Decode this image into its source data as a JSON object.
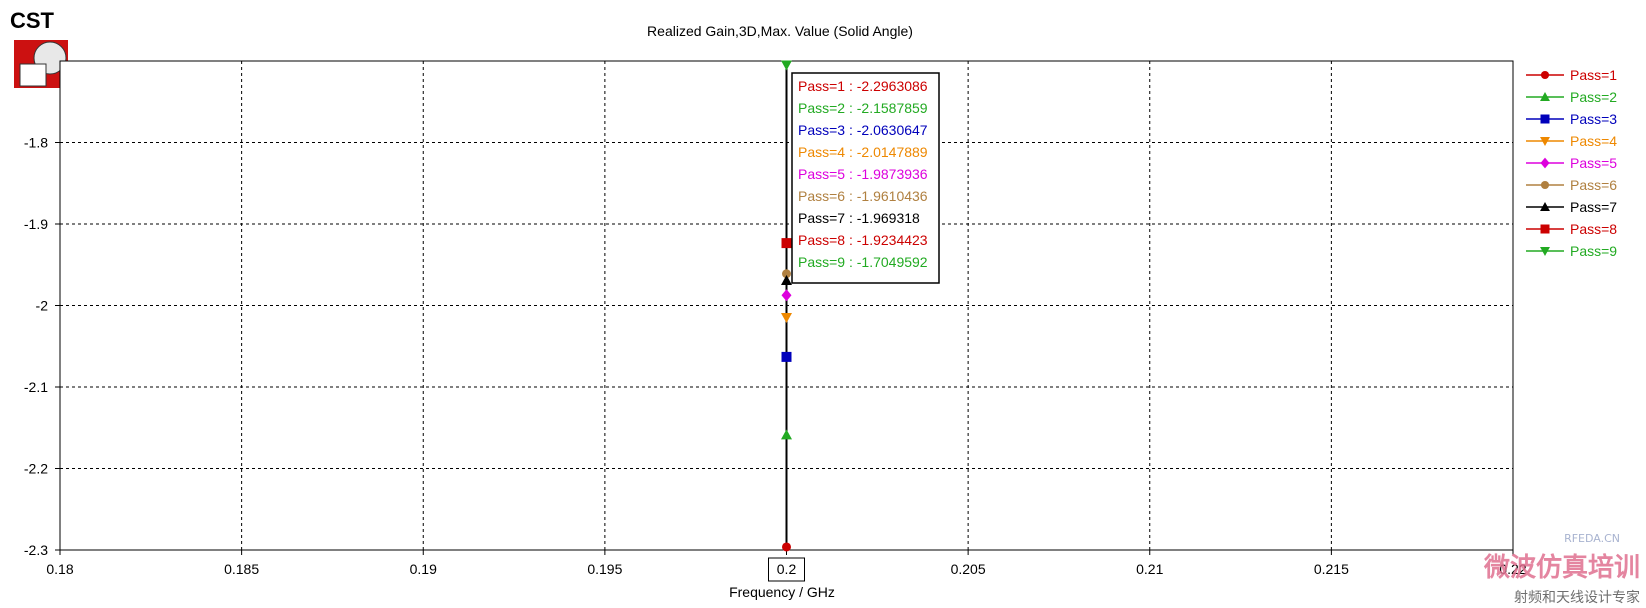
{
  "logo": {
    "text": "CST"
  },
  "watermark": {
    "line1": "RFEDA.CN",
    "line2": "微波仿真培训",
    "line3": "射频和天线设计专家"
  },
  "chart_data": {
    "type": "scatter",
    "title": "Realized Gain,3D,Max. Value (Solid Angle)",
    "xlabel": "Frequency / GHz",
    "ylabel": "",
    "xlim": [
      0.18,
      0.22
    ],
    "ylim": [
      -2.3,
      -1.7
    ],
    "x_ticks": [
      0.18,
      0.185,
      0.19,
      0.195,
      0.2,
      0.205,
      0.21,
      0.215,
      0.22
    ],
    "x_tick_labels": [
      "0.18",
      "0.185",
      "0.19",
      "0.195",
      "0.2",
      "0.205",
      "0.21",
      "0.215",
      "0.22"
    ],
    "y_ticks": [
      -2.3,
      -2.2,
      -2.1,
      -2.0,
      -1.9,
      -1.8
    ],
    "y_tick_labels": [
      "-2.3",
      "-2.2",
      "-2.1",
      "-2",
      "-1.9",
      "-1.8"
    ],
    "grid": true,
    "legend_position": "right",
    "highlighted_x_label": "0.2",
    "series": [
      {
        "name": "Pass=1",
        "x": 0.2,
        "y": -2.2963086,
        "color": "#cc0000",
        "marker": "circle",
        "annotation": "Pass=1 : -2.2963086"
      },
      {
        "name": "Pass=2",
        "x": 0.2,
        "y": -2.1587859,
        "color": "#22aa22",
        "marker": "triangle-up",
        "annotation": "Pass=2 : -2.1587859"
      },
      {
        "name": "Pass=3",
        "x": 0.2,
        "y": -2.0630647,
        "color": "#0000bb",
        "marker": "square",
        "annotation": "Pass=3 : -2.0630647"
      },
      {
        "name": "Pass=4",
        "x": 0.2,
        "y": -2.0147889,
        "color": "#ee8800",
        "marker": "triangle-down",
        "annotation": "Pass=4 : -2.0147889"
      },
      {
        "name": "Pass=5",
        "x": 0.2,
        "y": -1.9873936,
        "color": "#dd00dd",
        "marker": "diamond",
        "annotation": "Pass=5 : -1.9873936"
      },
      {
        "name": "Pass=6",
        "x": 0.2,
        "y": -1.9610436,
        "color": "#b08040",
        "marker": "circle",
        "annotation": "Pass=6 : -1.9610436"
      },
      {
        "name": "Pass=7",
        "x": 0.2,
        "y": -1.969318,
        "color": "#000000",
        "marker": "triangle-up",
        "annotation": "Pass=7 : -1.969318"
      },
      {
        "name": "Pass=8",
        "x": 0.2,
        "y": -1.9234423,
        "color": "#cc0000",
        "marker": "square",
        "annotation": "Pass=8 : -1.9234423"
      },
      {
        "name": "Pass=9",
        "x": 0.2,
        "y": -1.7049592,
        "color": "#22aa22",
        "marker": "triangle-down",
        "annotation": "Pass=9 : -1.7049592"
      }
    ]
  }
}
